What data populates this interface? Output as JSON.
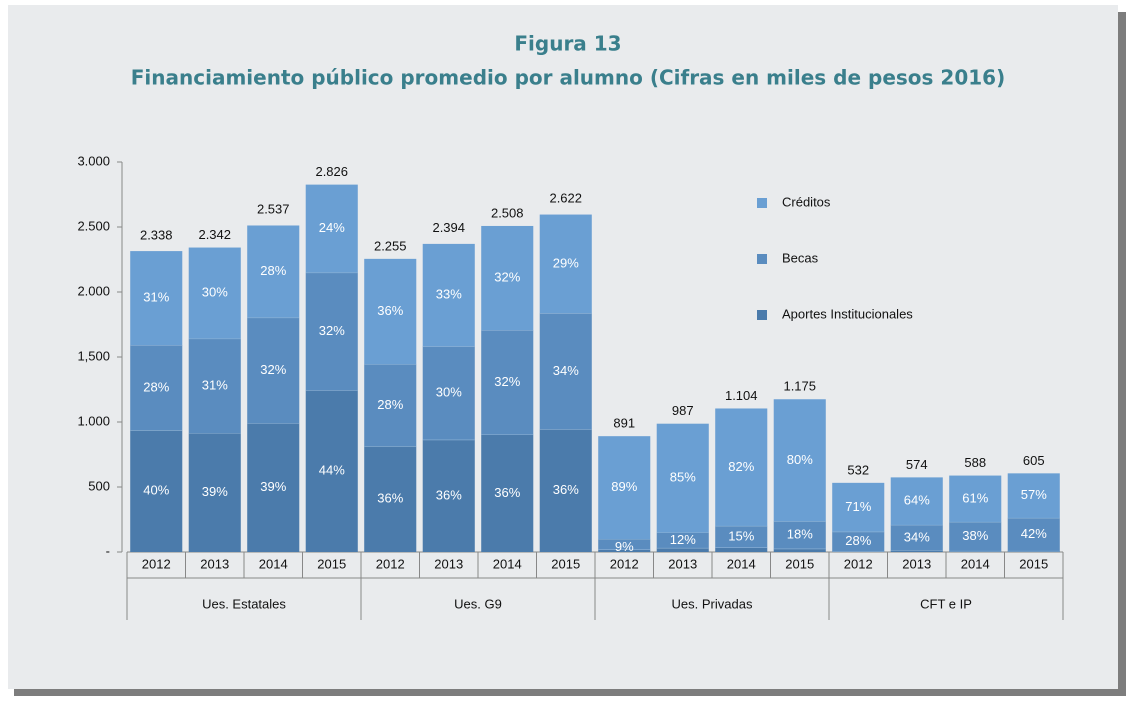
{
  "chart_data": {
    "type": "stacked_bar_share",
    "title": "Figura 13",
    "subtitle": "Financiamiento público promedio por alumno (Cifras en miles de pesos 2016)",
    "categories": [
      "2012",
      "2013",
      "2014",
      "2015",
      "2012",
      "2013",
      "2014",
      "2015",
      "2012",
      "2013",
      "2014",
      "2015",
      "2012",
      "2013",
      "2014",
      "2015"
    ],
    "groups": [
      "Ues. Estatales",
      "Ues. G9",
      "Ues. Privadas",
      "CFT e IP"
    ],
    "totals": {
      "values": [
        2338,
        2342,
        2537,
        2826,
        2255,
        2394,
        2508,
        2622,
        891,
        987,
        1104,
        1175,
        532,
        574,
        588,
        605
      ],
      "value_labels": [
        "2.338",
        "2.342",
        "2.537",
        "2.826",
        "2.255",
        "2.394",
        "2.508",
        "2.622",
        "891",
        "987",
        "1.104",
        "1.175",
        "532",
        "574",
        "588",
        "605"
      ]
    },
    "series": [
      {
        "name": "Aportes Institucionales",
        "color": "#4b7bab",
        "values": [
          40,
          39,
          39,
          44,
          36,
          36,
          36,
          36,
          2,
          3,
          3,
          2,
          1,
          2,
          1,
          1
        ],
        "value_labels": [
          "40%",
          "39%",
          "39%",
          "44%",
          "36%",
          "36%",
          "36%",
          "36%",
          null,
          null,
          null,
          null,
          null,
          null,
          null,
          null
        ]
      },
      {
        "name": "Becas",
        "color": "#5a8cbf",
        "values": [
          28,
          31,
          32,
          32,
          28,
          30,
          32,
          34,
          9,
          12,
          15,
          18,
          28,
          34,
          38,
          42
        ],
        "value_labels": [
          "28%",
          "31%",
          "32%",
          "32%",
          "28%",
          "30%",
          "32%",
          "34%",
          "9%",
          "12%",
          "15%",
          "18%",
          "28%",
          "34%",
          "38%",
          "42%"
        ]
      },
      {
        "name": "Créditos",
        "color": "#6a9fd3",
        "values": [
          31,
          30,
          28,
          24,
          36,
          33,
          32,
          29,
          89,
          85,
          82,
          80,
          71,
          64,
          61,
          57
        ],
        "value_labels": [
          "31%",
          "30%",
          "28%",
          "24%",
          "36%",
          "33%",
          "32%",
          "29%",
          "89%",
          "85%",
          "82%",
          "80%",
          "71%",
          "64%",
          "61%",
          "57%"
        ]
      }
    ],
    "ylim": [
      0,
      3000
    ],
    "yticks": [
      {
        "value": 0,
        "label": "-"
      },
      500,
      {
        "value": 1000,
        "label": "1.000"
      },
      {
        "value": 1500,
        "label": "1,500"
      },
      {
        "value": 2000,
        "label": "2.000"
      },
      {
        "value": 2500,
        "label": "2.500"
      },
      {
        "value": 3000,
        "label": "3.000"
      }
    ],
    "grid": false,
    "legend": "right"
  }
}
